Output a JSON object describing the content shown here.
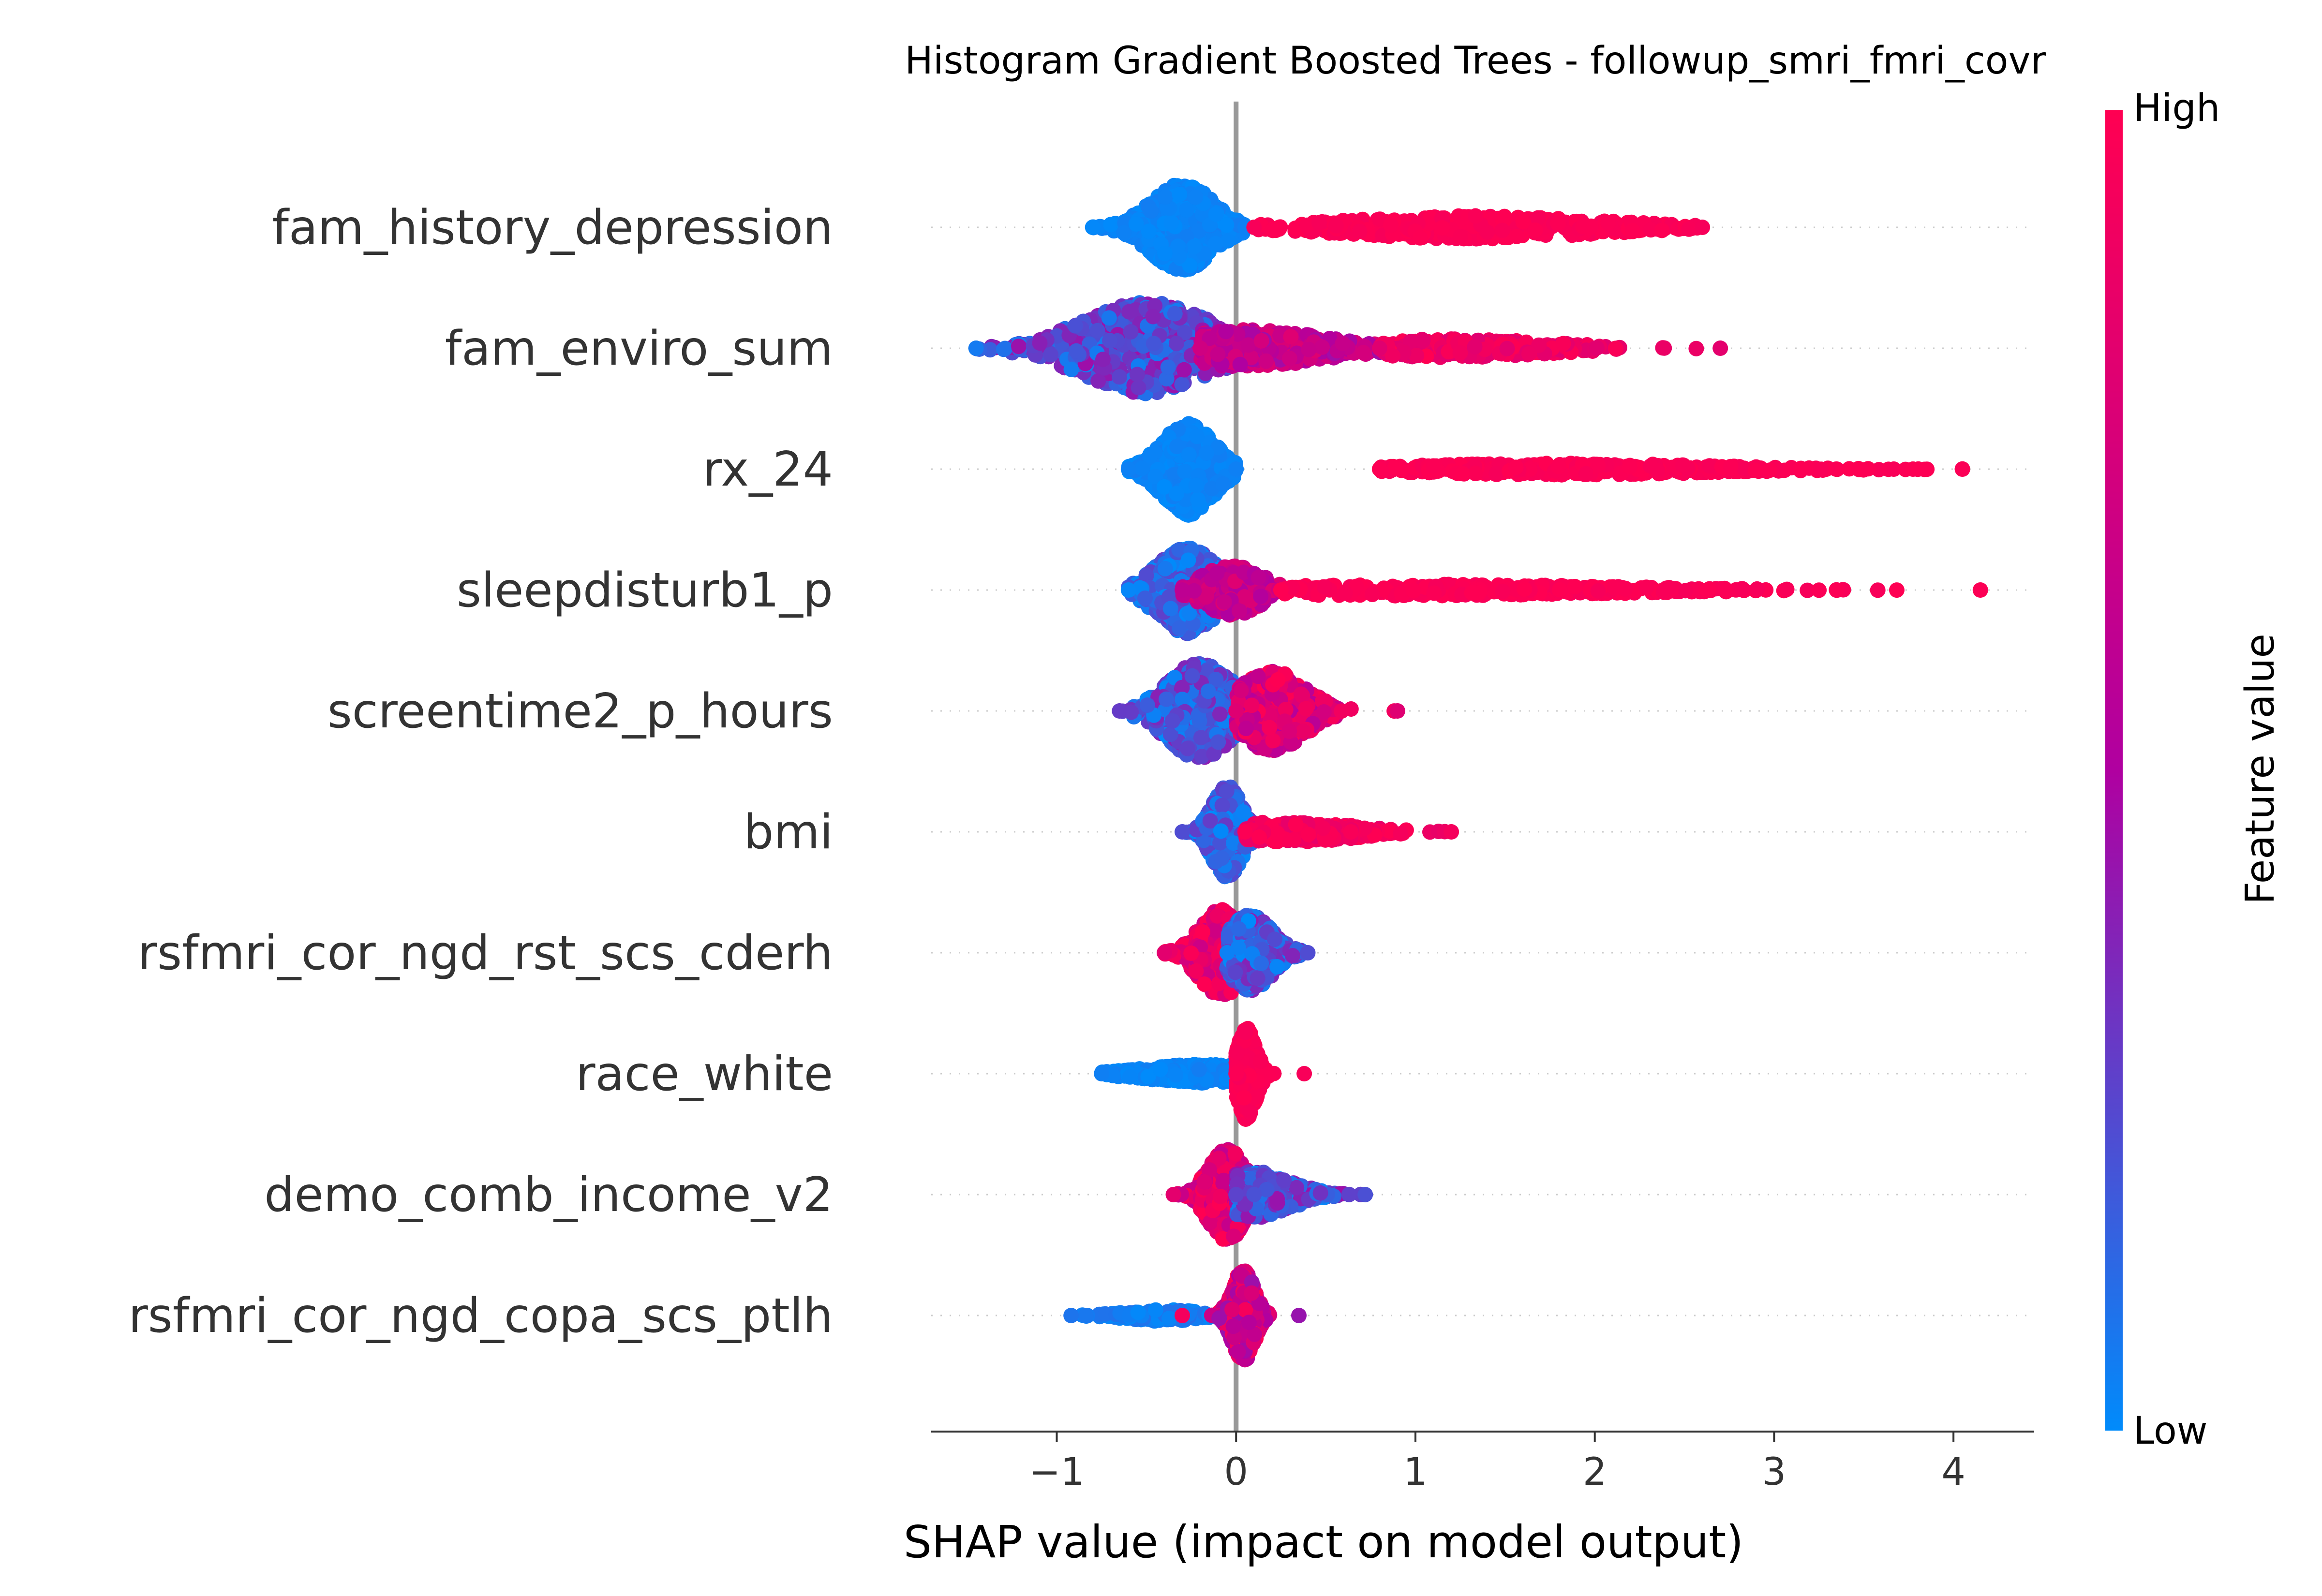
{
  "chart_data": {
    "type": "scatter",
    "subtype": "shap-beeswarm",
    "title": "Histogram Gradient Boosted Trees - followup_smri_fmri_covr",
    "xlabel": "SHAP value (impact on model output)",
    "ylabel": "",
    "xlim": [
      -1.7,
      4.45
    ],
    "x_ticks": [
      -1,
      0,
      1,
      2,
      3,
      4
    ],
    "x_tick_labels": [
      "−1",
      "0",
      "1",
      "2",
      "3",
      "4"
    ],
    "grid": false,
    "colorbar": {
      "label": "Feature value",
      "high_label": "High",
      "low_label": "Low",
      "low_color": "#008bfb",
      "mid_color": "#b000a0",
      "high_color": "#ff0052"
    },
    "features": [
      {
        "name": "fam_history_depression",
        "segments": [
          {
            "x0": -0.8,
            "x1": 0.05,
            "peak": -0.3,
            "spread": 0.17,
            "max_h": 0.38,
            "count": 600,
            "color": [
              0.0,
              0.05
            ]
          },
          {
            "x0": 0.1,
            "x1": 2.6,
            "peak": 1.3,
            "spread": 0.7,
            "max_h": 0.1,
            "count": 420,
            "color": [
              0.95,
              1.0
            ]
          }
        ]
      },
      {
        "name": "fam_enviro_sum",
        "segments": [
          {
            "x0": -1.45,
            "x1": 0.0,
            "peak": -0.5,
            "spread": 0.35,
            "max_h": 0.4,
            "count": 620,
            "color": [
              0.05,
              0.45
            ]
          },
          {
            "x0": -0.2,
            "x1": 1.0,
            "peak": 0.05,
            "spread": 0.45,
            "max_h": 0.16,
            "count": 380,
            "color": [
              0.45,
              0.8
            ]
          },
          {
            "x0": 0.8,
            "x1": 2.7,
            "peak": 1.2,
            "spread": 0.55,
            "max_h": 0.08,
            "count": 220,
            "color": [
              0.8,
              1.0
            ]
          }
        ]
      },
      {
        "name": "rx_24",
        "segments": [
          {
            "x0": -0.6,
            "x1": 0.0,
            "peak": -0.27,
            "spread": 0.14,
            "max_h": 0.4,
            "count": 620,
            "color": [
              0.0,
              0.05
            ]
          },
          {
            "x0": 0.8,
            "x1": 4.05,
            "peak": 1.8,
            "spread": 0.85,
            "max_h": 0.05,
            "count": 380,
            "color": [
              0.95,
              1.0
            ]
          }
        ]
      },
      {
        "name": "sleepdisturb1_p",
        "segments": [
          {
            "x0": -0.6,
            "x1": 0.1,
            "peak": -0.27,
            "spread": 0.16,
            "max_h": 0.38,
            "count": 550,
            "color": [
              0.0,
              0.3
            ]
          },
          {
            "x0": -0.3,
            "x1": 0.25,
            "peak": -0.02,
            "spread": 0.16,
            "max_h": 0.22,
            "count": 260,
            "color": [
              0.5,
              0.8
            ]
          },
          {
            "x0": 0.25,
            "x1": 4.15,
            "peak": 1.0,
            "spread": 1.1,
            "max_h": 0.05,
            "count": 330,
            "color": [
              0.95,
              1.0
            ]
          }
        ]
      },
      {
        "name": "screentime2_p_hours",
        "segments": [
          {
            "x0": -0.65,
            "x1": 0.1,
            "peak": -0.2,
            "spread": 0.18,
            "max_h": 0.42,
            "count": 550,
            "color": [
              0.0,
              0.4
            ]
          },
          {
            "x0": 0.0,
            "x1": 0.9,
            "peak": 0.2,
            "spread": 0.18,
            "max_h": 0.35,
            "count": 430,
            "color": [
              0.5,
              1.0
            ]
          }
        ]
      },
      {
        "name": "bmi",
        "segments": [
          {
            "x0": -0.3,
            "x1": 0.1,
            "peak": -0.05,
            "spread": 0.08,
            "max_h": 0.4,
            "count": 560,
            "color": [
              0.0,
              0.3
            ]
          },
          {
            "x0": 0.05,
            "x1": 1.2,
            "peak": 0.3,
            "spread": 0.35,
            "max_h": 0.09,
            "count": 260,
            "color": [
              0.85,
              1.0
            ]
          }
        ]
      },
      {
        "name": "rsfmri_cor_ngd_rst_scs_cderh",
        "segments": [
          {
            "x0": -0.4,
            "x1": 0.1,
            "peak": -0.08,
            "spread": 0.12,
            "max_h": 0.38,
            "count": 520,
            "color": [
              0.65,
              1.0
            ]
          },
          {
            "x0": -0.05,
            "x1": 0.4,
            "peak": 0.08,
            "spread": 0.12,
            "max_h": 0.33,
            "count": 440,
            "color": [
              0.0,
              0.4
            ]
          }
        ]
      },
      {
        "name": "race_white",
        "segments": [
          {
            "x0": -0.75,
            "x1": 0.0,
            "peak": -0.2,
            "spread": 0.3,
            "max_h": 0.08,
            "count": 430,
            "color": [
              0.0,
              0.05
            ]
          },
          {
            "x0": 0.0,
            "x1": 0.38,
            "peak": 0.06,
            "spread": 0.05,
            "max_h": 0.4,
            "count": 440,
            "color": [
              0.95,
              1.0
            ]
          }
        ]
      },
      {
        "name": "demo_comb_income_v2",
        "segments": [
          {
            "x0": -0.35,
            "x1": 0.15,
            "peak": -0.05,
            "spread": 0.1,
            "max_h": 0.4,
            "count": 560,
            "color": [
              0.6,
              1.0
            ]
          },
          {
            "x0": 0.0,
            "x1": 0.72,
            "peak": 0.1,
            "spread": 0.2,
            "max_h": 0.2,
            "count": 380,
            "color": [
              0.0,
              0.45
            ]
          }
        ]
      },
      {
        "name": "rsfmri_cor_ngd_copa_scs_ptlh",
        "segments": [
          {
            "x0": -0.92,
            "x1": -0.15,
            "peak": -0.4,
            "spread": 0.2,
            "max_h": 0.05,
            "count": 180,
            "color": [
              0.0,
              0.1
            ]
          },
          {
            "x0": -0.3,
            "x1": 0.35,
            "peak": 0.04,
            "spread": 0.06,
            "max_h": 0.4,
            "count": 500,
            "color": [
              0.4,
              1.0
            ]
          }
        ]
      }
    ]
  }
}
